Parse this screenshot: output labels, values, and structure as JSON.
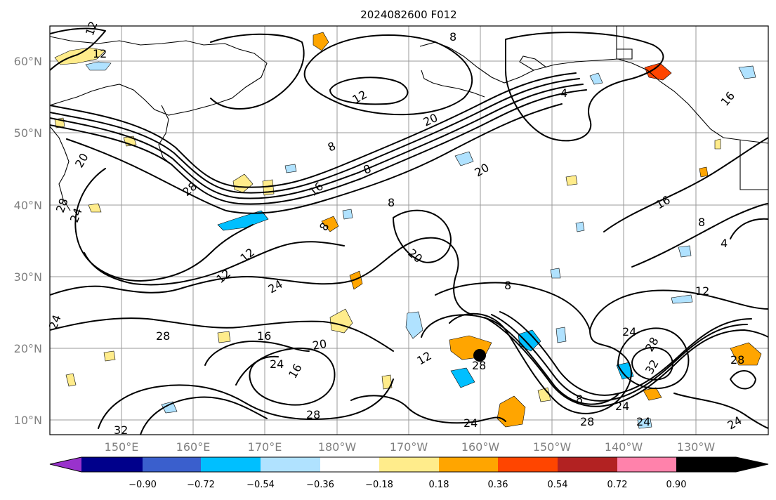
{
  "title": "2024082600 F012",
  "map": {
    "lat_labels": [
      "60°N",
      "50°N",
      "40°N",
      "30°N",
      "20°N",
      "10°N"
    ],
    "lon_labels": [
      "150°E",
      "160°E",
      "170°E",
      "180°W",
      "170°W",
      "160°W",
      "150°W",
      "140°W",
      "130°W"
    ],
    "contour_color": "#000000",
    "storm_marker_color": "#000000"
  },
  "colorbar": {
    "colors": [
      "#9932cc",
      "#00008b",
      "#3a5fcd",
      "#00bfff",
      "#b0e2ff",
      "#ffffff",
      "#ffec8b",
      "#ffa500",
      "#ff4500",
      "#b22222",
      "#ff82ab"
    ],
    "tick_labels": [
      "−0.90",
      "−0.72",
      "−0.54",
      "−0.36",
      "−0.18",
      "0.18",
      "0.36",
      "0.54",
      "0.72",
      "0.90"
    ]
  },
  "contour_labels": [
    {
      "text": "12"
    },
    {
      "text": "12"
    },
    {
      "text": "8"
    },
    {
      "text": "12"
    },
    {
      "text": "4"
    },
    {
      "text": "16"
    },
    {
      "text": "20"
    },
    {
      "text": "8"
    },
    {
      "text": "8"
    },
    {
      "text": "20"
    },
    {
      "text": "20"
    },
    {
      "text": "28"
    },
    {
      "text": "16"
    },
    {
      "text": "8"
    },
    {
      "text": "8"
    },
    {
      "text": "16"
    },
    {
      "text": "8"
    },
    {
      "text": "4"
    },
    {
      "text": "28"
    },
    {
      "text": "24"
    },
    {
      "text": "12"
    },
    {
      "text": "12"
    },
    {
      "text": "20"
    },
    {
      "text": "24"
    },
    {
      "text": "8"
    },
    {
      "text": "12"
    },
    {
      "text": "24"
    },
    {
      "text": "28"
    },
    {
      "text": "16"
    },
    {
      "text": "20"
    },
    {
      "text": "24"
    },
    {
      "text": "16"
    },
    {
      "text": "12"
    },
    {
      "text": "28"
    },
    {
      "text": "28"
    },
    {
      "text": "8"
    },
    {
      "text": "24"
    },
    {
      "text": "28"
    },
    {
      "text": "32"
    },
    {
      "text": "28"
    },
    {
      "text": "24"
    },
    {
      "text": "28"
    },
    {
      "text": "24"
    },
    {
      "text": "24"
    },
    {
      "text": "32"
    },
    {
      "text": "24"
    }
  ]
}
